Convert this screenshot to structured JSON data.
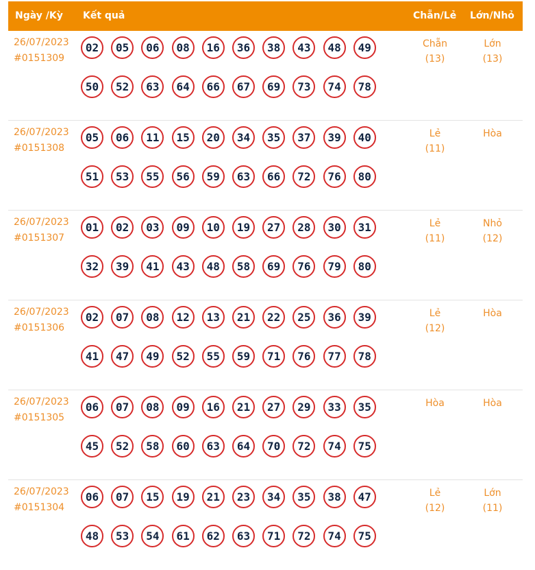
{
  "header": {
    "date_label": "Ngày /Kỳ",
    "result_label": "Kết quả",
    "parity_label": "Chẵn/Lẻ",
    "size_label": "Lớn/Nhỏ"
  },
  "rows": [
    {
      "date": "26/07/2023",
      "draw": "#0151309",
      "numbers": [
        "02",
        "05",
        "06",
        "08",
        "16",
        "36",
        "38",
        "43",
        "48",
        "49",
        "50",
        "52",
        "63",
        "64",
        "66",
        "67",
        "69",
        "73",
        "74",
        "78"
      ],
      "parity": {
        "label": "Chẵn",
        "count": "(13)"
      },
      "size": {
        "label": "Lớn",
        "count": "(13)"
      }
    },
    {
      "date": "26/07/2023",
      "draw": "#0151308",
      "numbers": [
        "05",
        "06",
        "11",
        "15",
        "20",
        "34",
        "35",
        "37",
        "39",
        "40",
        "51",
        "53",
        "55",
        "56",
        "59",
        "63",
        "66",
        "72",
        "76",
        "80"
      ],
      "parity": {
        "label": "Lẻ",
        "count": "(11)"
      },
      "size": {
        "label": "Hòa",
        "count": ""
      }
    },
    {
      "date": "26/07/2023",
      "draw": "#0151307",
      "numbers": [
        "01",
        "02",
        "03",
        "09",
        "10",
        "19",
        "27",
        "28",
        "30",
        "31",
        "32",
        "39",
        "41",
        "43",
        "48",
        "58",
        "69",
        "76",
        "79",
        "80"
      ],
      "parity": {
        "label": "Lẻ",
        "count": "(11)"
      },
      "size": {
        "label": "Nhỏ",
        "count": "(12)"
      }
    },
    {
      "date": "26/07/2023",
      "draw": "#0151306",
      "numbers": [
        "02",
        "07",
        "08",
        "12",
        "13",
        "21",
        "22",
        "25",
        "36",
        "39",
        "41",
        "47",
        "49",
        "52",
        "55",
        "59",
        "71",
        "76",
        "77",
        "78"
      ],
      "parity": {
        "label": "Lẻ",
        "count": "(12)"
      },
      "size": {
        "label": "Hòa",
        "count": ""
      }
    },
    {
      "date": "26/07/2023",
      "draw": "#0151305",
      "numbers": [
        "06",
        "07",
        "08",
        "09",
        "16",
        "21",
        "27",
        "29",
        "33",
        "35",
        "45",
        "52",
        "58",
        "60",
        "63",
        "64",
        "70",
        "72",
        "74",
        "75"
      ],
      "parity": {
        "label": "Hòa",
        "count": ""
      },
      "size": {
        "label": "Hòa",
        "count": ""
      }
    },
    {
      "date": "26/07/2023",
      "draw": "#0151304",
      "numbers": [
        "06",
        "07",
        "15",
        "19",
        "21",
        "23",
        "34",
        "35",
        "38",
        "47",
        "48",
        "53",
        "54",
        "61",
        "62",
        "63",
        "71",
        "72",
        "74",
        "75"
      ],
      "parity": {
        "label": "Lẻ",
        "count": "(12)"
      },
      "size": {
        "label": "Lớn",
        "count": "(11)"
      }
    }
  ]
}
